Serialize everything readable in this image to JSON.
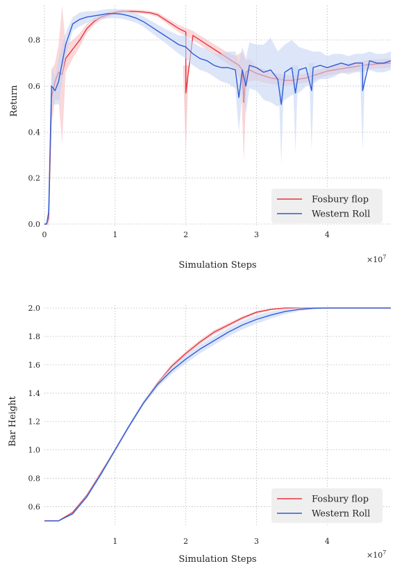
{
  "chart_data": [
    {
      "type": "line",
      "xlabel": "Simulation Steps",
      "ylabel": "Return",
      "x_multiplier": "×10",
      "x_multiplier_exp": "7",
      "xlim": [
        0,
        4.9
      ],
      "ylim": [
        0,
        0.95
      ],
      "xticks": [
        0,
        1,
        2,
        3,
        4
      ],
      "yticks": [
        0.0,
        0.2,
        0.4,
        0.6,
        0.8
      ],
      "ytick_labels": [
        "0.0",
        "0.2",
        "0.4",
        "0.6",
        "0.8"
      ],
      "xtick_labels": [
        "0",
        "1",
        "2",
        "3",
        "4"
      ],
      "grid": true,
      "legend_position": "lower-right",
      "series": [
        {
          "name": "Fosbury flop",
          "color": "#e8333b",
          "band_color": "#f5b8bc",
          "x": [
            0,
            0.03,
            0.06,
            0.1,
            0.15,
            0.2,
            0.25,
            0.3,
            0.4,
            0.5,
            0.6,
            0.7,
            0.8,
            0.9,
            1.0,
            1.1,
            1.2,
            1.3,
            1.4,
            1.5,
            1.6,
            1.7,
            1.8,
            1.9,
            2.0,
            2.1,
            2.2,
            2.3,
            2.4,
            2.5,
            2.6,
            2.7,
            2.75,
            2.8,
            2.85,
            2.9,
            3.0,
            3.1,
            3.2,
            3.3,
            3.4,
            3.5,
            3.6,
            3.7,
            3.8,
            3.9,
            4.0,
            4.1,
            4.2,
            4.3,
            4.4,
            4.5,
            4.6,
            4.7,
            4.8,
            4.9
          ],
          "y": [
            0.0,
            0.0,
            0.02,
            0.55,
            0.62,
            0.66,
            0.65,
            0.72,
            0.76,
            0.8,
            0.85,
            0.88,
            0.9,
            0.91,
            0.92,
            0.925,
            0.925,
            0.924,
            0.922,
            0.918,
            0.91,
            0.89,
            0.87,
            0.85,
            0.835,
            0.82,
            0.8,
            0.78,
            0.76,
            0.74,
            0.72,
            0.7,
            0.69,
            0.67,
            0.66,
            0.67,
            0.655,
            0.645,
            0.635,
            0.63,
            0.625,
            0.625,
            0.63,
            0.635,
            0.645,
            0.655,
            0.665,
            0.67,
            0.675,
            0.68,
            0.685,
            0.69,
            0.693,
            0.696,
            0.698,
            0.7
          ],
          "band": [
            0.0,
            0.0,
            0.03,
            0.12,
            0.08,
            0.12,
            0.3,
            0.06,
            0.04,
            0.03,
            0.02,
            0.015,
            0.012,
            0.01,
            0.008,
            0.008,
            0.008,
            0.008,
            0.008,
            0.008,
            0.01,
            0.012,
            0.014,
            0.016,
            0.018,
            0.02,
            0.02,
            0.022,
            0.022,
            0.024,
            0.025,
            0.03,
            0.05,
            0.08,
            0.05,
            0.05,
            0.03,
            0.03,
            0.025,
            0.025,
            0.025,
            0.02,
            0.02,
            0.02,
            0.02,
            0.02,
            0.02,
            0.02,
            0.02,
            0.02,
            0.02,
            0.02,
            0.02,
            0.02,
            0.02,
            0.02
          ],
          "spikes": [
            [
              2.0,
              0.57
            ],
            [
              2.82,
              0.53
            ]
          ]
        },
        {
          "name": "Western Roll",
          "color": "#2e5bd6",
          "band_color": "#c7d6f3",
          "x": [
            0,
            0.03,
            0.06,
            0.1,
            0.15,
            0.2,
            0.25,
            0.3,
            0.4,
            0.5,
            0.6,
            0.7,
            0.8,
            0.9,
            1.0,
            1.1,
            1.2,
            1.3,
            1.4,
            1.5,
            1.6,
            1.7,
            1.8,
            1.9,
            2.0,
            2.1,
            2.2,
            2.3,
            2.4,
            2.5,
            2.6,
            2.7,
            2.75,
            2.8,
            2.85,
            2.9,
            3.0,
            3.1,
            3.2,
            3.3,
            3.4,
            3.5,
            3.6,
            3.7,
            3.8,
            3.9,
            4.0,
            4.1,
            4.2,
            4.3,
            4.4,
            4.5,
            4.6,
            4.7,
            4.8,
            4.9
          ],
          "y": [
            0.0,
            0.0,
            0.05,
            0.6,
            0.58,
            0.62,
            0.7,
            0.78,
            0.87,
            0.89,
            0.9,
            0.905,
            0.91,
            0.915,
            0.915,
            0.912,
            0.905,
            0.895,
            0.88,
            0.86,
            0.84,
            0.82,
            0.8,
            0.78,
            0.77,
            0.74,
            0.72,
            0.71,
            0.69,
            0.68,
            0.68,
            0.67,
            0.55,
            0.67,
            0.6,
            0.69,
            0.68,
            0.66,
            0.67,
            0.63,
            0.66,
            0.68,
            0.67,
            0.68,
            0.68,
            0.69,
            0.68,
            0.69,
            0.7,
            0.69,
            0.7,
            0.7,
            0.71,
            0.7,
            0.7,
            0.71
          ],
          "band": [
            0.0,
            0.0,
            0.05,
            0.08,
            0.06,
            0.1,
            0.08,
            0.05,
            0.03,
            0.03,
            0.025,
            0.02,
            0.02,
            0.02,
            0.02,
            0.02,
            0.02,
            0.02,
            0.022,
            0.025,
            0.028,
            0.03,
            0.035,
            0.04,
            0.05,
            0.05,
            0.05,
            0.05,
            0.05,
            0.06,
            0.07,
            0.08,
            0.15,
            0.1,
            0.12,
            0.1,
            0.1,
            0.12,
            0.14,
            0.12,
            0.12,
            0.12,
            0.1,
            0.08,
            0.07,
            0.06,
            0.05,
            0.05,
            0.04,
            0.04,
            0.04,
            0.04,
            0.04,
            0.04,
            0.04,
            0.04
          ],
          "spikes": [
            [
              3.35,
              0.52
            ],
            [
              3.55,
              0.57
            ],
            [
              3.78,
              0.58
            ],
            [
              4.5,
              0.58
            ]
          ]
        }
      ]
    },
    {
      "type": "line",
      "xlabel": "Simulation Steps",
      "ylabel": "Bar Height",
      "x_multiplier": "×10",
      "x_multiplier_exp": "7",
      "xlim": [
        0,
        4.9
      ],
      "ylim": [
        0.48,
        2.02
      ],
      "xticks": [
        1,
        2,
        3,
        4
      ],
      "yticks": [
        0.6,
        0.8,
        1.0,
        1.2,
        1.4,
        1.6,
        1.8,
        2.0
      ],
      "ytick_labels": [
        "0.6",
        "0.8",
        "1.0",
        "1.2",
        "1.4",
        "1.6",
        "1.8",
        "2.0"
      ],
      "xtick_labels": [
        "1",
        "2",
        "3",
        "4"
      ],
      "grid": true,
      "legend_position": "lower-right",
      "series": [
        {
          "name": "Fosbury flop",
          "color": "#e8333b",
          "band_color": "#f5b8bc",
          "x": [
            0,
            0.1,
            0.2,
            0.4,
            0.6,
            0.8,
            1.0,
            1.2,
            1.4,
            1.6,
            1.8,
            2.0,
            2.2,
            2.4,
            2.6,
            2.8,
            3.0,
            3.2,
            3.4,
            3.6,
            3.8,
            4.0,
            4.5,
            4.9
          ],
          "y": [
            0.5,
            0.5,
            0.5,
            0.56,
            0.68,
            0.84,
            1.0,
            1.17,
            1.33,
            1.47,
            1.59,
            1.68,
            1.76,
            1.83,
            1.88,
            1.93,
            1.97,
            1.99,
            2.0,
            2.0,
            2.0,
            2.0,
            2.0,
            2.0
          ],
          "band": [
            0,
            0,
            0,
            0.005,
            0.008,
            0.01,
            0.01,
            0.01,
            0.01,
            0.012,
            0.014,
            0.015,
            0.015,
            0.015,
            0.014,
            0.012,
            0.01,
            0.006,
            0.003,
            0,
            0,
            0,
            0,
            0
          ]
        },
        {
          "name": "Western Roll",
          "color": "#2e5bd6",
          "band_color": "#c7d6f3",
          "x": [
            0,
            0.1,
            0.2,
            0.4,
            0.6,
            0.8,
            1.0,
            1.2,
            1.4,
            1.6,
            1.8,
            2.0,
            2.2,
            2.4,
            2.6,
            2.8,
            3.0,
            3.2,
            3.4,
            3.6,
            3.8,
            4.0,
            4.5,
            4.9
          ],
          "y": [
            0.5,
            0.5,
            0.5,
            0.55,
            0.67,
            0.83,
            1.0,
            1.17,
            1.33,
            1.46,
            1.56,
            1.64,
            1.71,
            1.77,
            1.83,
            1.88,
            1.92,
            1.95,
            1.975,
            1.99,
            1.998,
            2.0,
            2.0,
            2.0
          ],
          "band": [
            0,
            0,
            0,
            0.008,
            0.012,
            0.015,
            0.015,
            0.015,
            0.018,
            0.02,
            0.025,
            0.03,
            0.03,
            0.03,
            0.03,
            0.03,
            0.03,
            0.025,
            0.02,
            0.012,
            0.005,
            0,
            0,
            0
          ]
        }
      ]
    }
  ]
}
